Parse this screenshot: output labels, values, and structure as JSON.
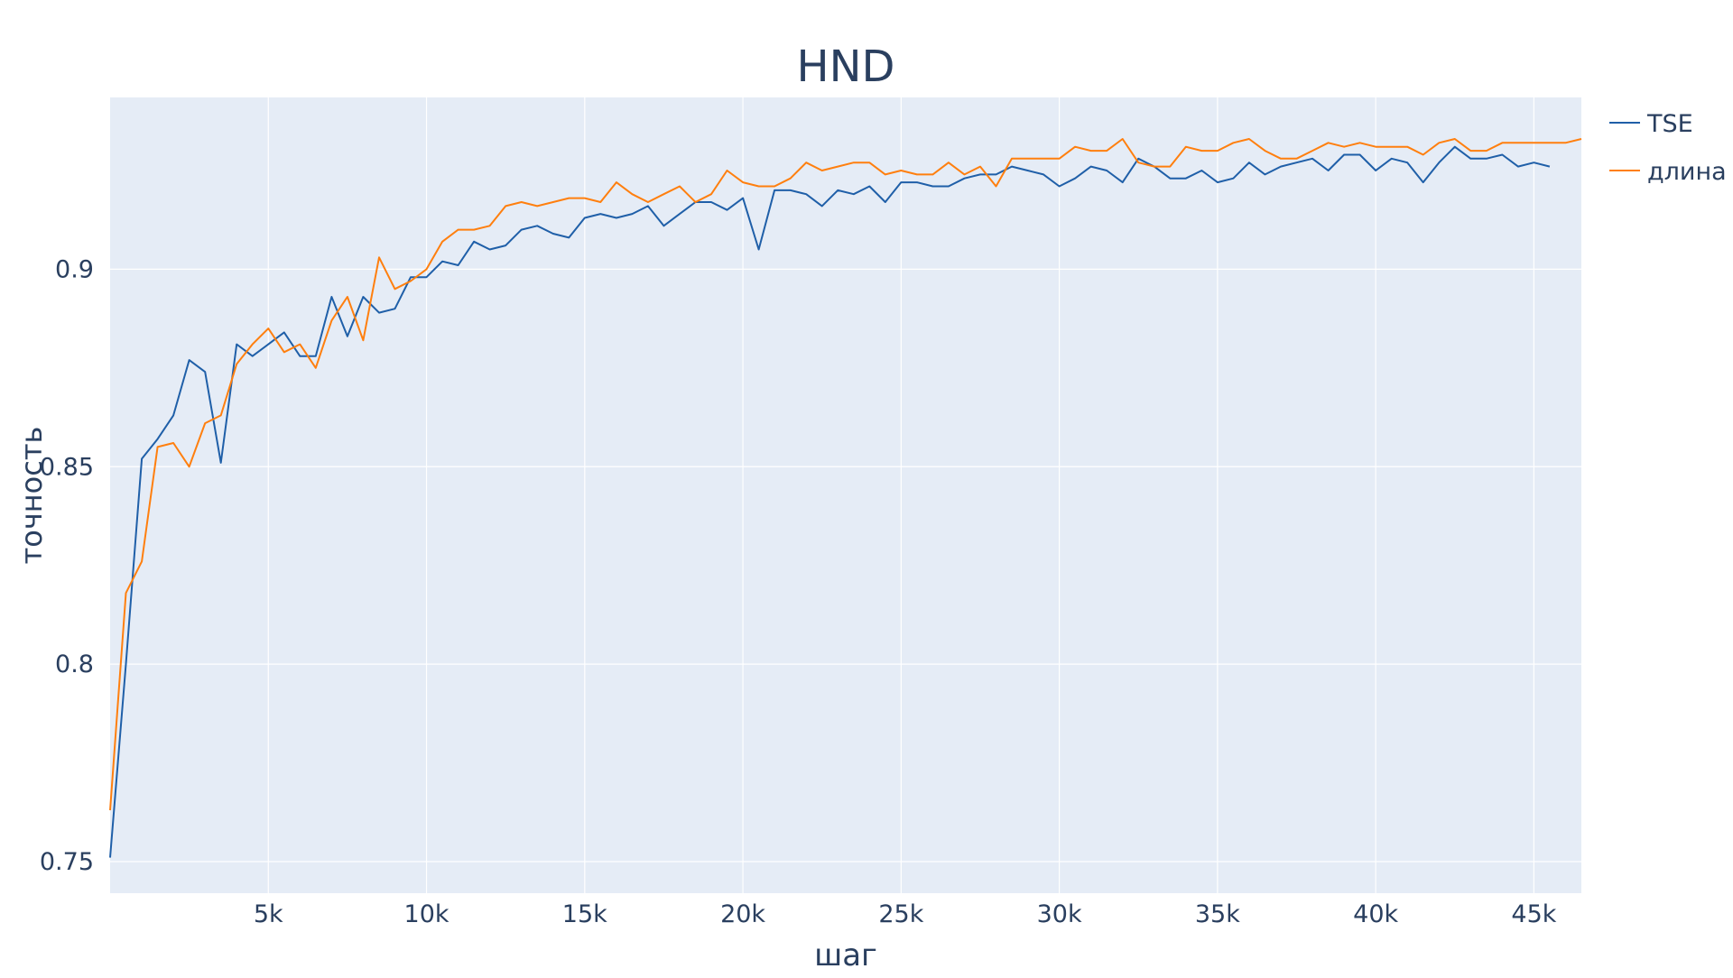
{
  "chart_data": {
    "type": "line",
    "title": "HND",
    "xlabel": "шаг",
    "ylabel": "точность",
    "xlim": [
      0,
      46500
    ],
    "ylim": [
      0.742,
      0.9435
    ],
    "x_ticks": [
      {
        "value": 5000,
        "label": "5k"
      },
      {
        "value": 10000,
        "label": "10k"
      },
      {
        "value": 15000,
        "label": "15k"
      },
      {
        "value": 20000,
        "label": "20k"
      },
      {
        "value": 25000,
        "label": "25k"
      },
      {
        "value": 30000,
        "label": "30k"
      },
      {
        "value": 35000,
        "label": "35k"
      },
      {
        "value": 40000,
        "label": "40k"
      },
      {
        "value": 45000,
        "label": "45k"
      }
    ],
    "y_ticks": [
      {
        "value": 0.75,
        "label": "0.75"
      },
      {
        "value": 0.8,
        "label": "0.8"
      },
      {
        "value": 0.85,
        "label": "0.85"
      },
      {
        "value": 0.9,
        "label": "0.9"
      }
    ],
    "grid": true,
    "legend_position": "top-right",
    "background_color": "#e5ecf6",
    "x": [
      0,
      500,
      1000,
      1500,
      2000,
      2500,
      3000,
      3500,
      4000,
      4500,
      5000,
      5500,
      6000,
      6500,
      7000,
      7500,
      8000,
      8500,
      9000,
      9500,
      10000,
      10500,
      11000,
      11500,
      12000,
      12500,
      13000,
      13500,
      14000,
      14500,
      15000,
      15500,
      16000,
      16500,
      17000,
      17500,
      18000,
      18500,
      19000,
      19500,
      20000,
      20500,
      21000,
      21500,
      22000,
      22500,
      23000,
      23500,
      24000,
      24500,
      25000,
      25500,
      26000,
      26500,
      27000,
      27500,
      28000,
      28500,
      29000,
      29500,
      30000,
      30500,
      31000,
      31500,
      32000,
      32500,
      33000,
      33500,
      34000,
      34500,
      35000,
      35500,
      36000,
      36500,
      37000,
      37500,
      38000,
      38500,
      39000,
      39500,
      40000,
      40500,
      41000,
      41500,
      42000,
      42500,
      43000,
      43500,
      44000,
      44500,
      45000,
      45500,
      46000,
      46500
    ],
    "series": [
      {
        "name": "TSE",
        "color": "#1f5fa8",
        "values": [
          0.751,
          0.8,
          0.852,
          0.857,
          0.863,
          0.877,
          0.874,
          0.851,
          0.881,
          0.878,
          0.881,
          0.884,
          0.878,
          0.878,
          0.893,
          0.883,
          0.893,
          0.889,
          0.89,
          0.898,
          0.898,
          0.902,
          0.901,
          0.907,
          0.905,
          0.906,
          0.91,
          0.911,
          0.909,
          0.908,
          0.913,
          0.914,
          0.913,
          0.914,
          0.916,
          0.911,
          0.914,
          0.917,
          0.917,
          0.915,
          0.918,
          0.905,
          0.92,
          0.92,
          0.919,
          0.916,
          0.92,
          0.919,
          0.921,
          0.917,
          0.922,
          0.922,
          0.921,
          0.921,
          0.923,
          0.924,
          0.924,
          0.926,
          0.925,
          0.924,
          0.921,
          0.923,
          0.926,
          0.925,
          0.922,
          0.928,
          0.926,
          0.923,
          0.923,
          0.925,
          0.922,
          0.923,
          0.927,
          0.924,
          0.926,
          0.927,
          0.928,
          0.925,
          0.929,
          0.929,
          0.925,
          0.928,
          0.927,
          0.922,
          0.927,
          0.931,
          0.928,
          0.928,
          0.929,
          0.926,
          0.927,
          0.926,
          null,
          null
        ]
      },
      {
        "name": "длина",
        "color": "#ff7f0e",
        "values": [
          0.763,
          0.818,
          0.826,
          0.855,
          0.856,
          0.85,
          0.861,
          0.863,
          0.876,
          0.881,
          0.885,
          0.879,
          0.881,
          0.875,
          0.887,
          0.893,
          0.882,
          0.903,
          0.895,
          0.897,
          0.9,
          0.907,
          0.91,
          0.91,
          0.911,
          0.916,
          0.917,
          0.916,
          0.917,
          0.918,
          0.918,
          0.917,
          0.922,
          0.919,
          0.917,
          0.919,
          0.921,
          0.917,
          0.919,
          0.925,
          0.922,
          0.921,
          0.921,
          0.923,
          0.927,
          0.925,
          0.926,
          0.927,
          0.927,
          0.924,
          0.925,
          0.924,
          0.924,
          0.927,
          0.924,
          0.926,
          0.921,
          0.928,
          0.928,
          0.928,
          0.928,
          0.931,
          0.93,
          0.93,
          0.933,
          0.927,
          0.926,
          0.926,
          0.931,
          0.93,
          0.93,
          0.932,
          0.933,
          0.93,
          0.928,
          0.928,
          0.93,
          0.932,
          0.931,
          0.932,
          0.931,
          0.931,
          0.931,
          0.929,
          0.932,
          0.933,
          0.93,
          0.93,
          0.932,
          0.932,
          0.932,
          0.932,
          0.932,
          0.933
        ]
      }
    ]
  }
}
